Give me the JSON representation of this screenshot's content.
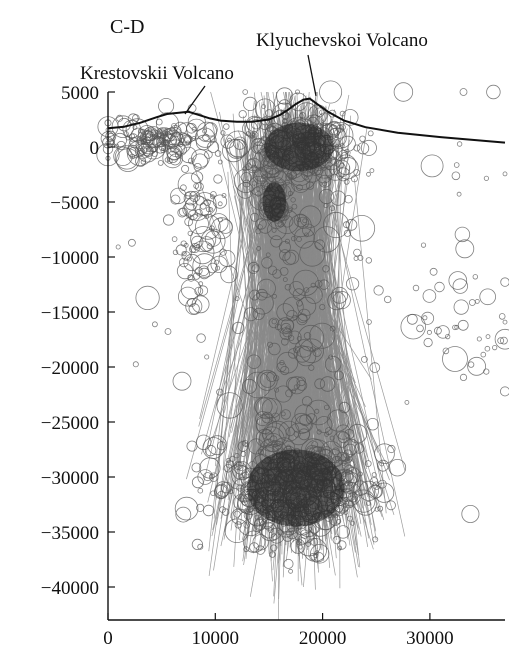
{
  "chart_data": {
    "type": "scatter",
    "title": "C-D",
    "xlabel": "",
    "ylabel": "",
    "xlim": [
      0,
      37000
    ],
    "ylim": [
      -43000,
      5000
    ],
    "x_ticks": [
      0,
      10000,
      20000,
      30000
    ],
    "x_tick_labels": [
      "0",
      "10000",
      "20000",
      "30000"
    ],
    "y_ticks": [
      5000,
      0,
      -5000,
      -10000,
      -15000,
      -20000,
      -25000,
      -30000,
      -35000,
      -40000
    ],
    "y_tick_labels": [
      "5000",
      "0",
      "−5000",
      "−10000",
      "−15000",
      "−20000",
      "−25000",
      "−30000",
      "−35000",
      "−40000"
    ],
    "grid": false,
    "annotations": [
      {
        "text": "Klyuchevskoi Volcano",
        "x": 18800,
        "y": 4400
      },
      {
        "text": "Krestovskii Volcano",
        "x": 7400,
        "y": 3500
      }
    ],
    "topography": {
      "x": [
        0,
        1500,
        3000,
        4500,
        5500,
        6500,
        7500,
        8500,
        9500,
        10500,
        12000,
        13500,
        15000,
        16000,
        16800,
        17500,
        18200,
        18800,
        19500,
        20500,
        22000,
        24000,
        27000,
        31000,
        37000
      ],
      "y": [
        1700,
        1850,
        2200,
        2700,
        3000,
        3100,
        3200,
        2900,
        2600,
        2400,
        2300,
        2300,
        2500,
        2900,
        3400,
        3900,
        4300,
        4400,
        3900,
        3200,
        2400,
        1800,
        1300,
        900,
        400
      ]
    },
    "series": [
      {
        "kind": "hypocenter-circles",
        "clusters": [
          {
            "cx": 4500,
            "cy": 500,
            "sx": 2500,
            "sy": 900,
            "n": 140
          },
          {
            "cx": 8500,
            "cy": -7500,
            "sx": 1200,
            "sy": 4500,
            "n": 90
          },
          {
            "cx": 17800,
            "cy": 0,
            "sx": 2800,
            "sy": 1800,
            "n": 260
          },
          {
            "cx": 15500,
            "cy": -5000,
            "sx": 900,
            "sy": 1500,
            "n": 60
          },
          {
            "cx": 17500,
            "cy": -16000,
            "sx": 2000,
            "sy": 8000,
            "n": 150
          },
          {
            "cx": 17500,
            "cy": -31000,
            "sx": 3800,
            "sy": 2600,
            "n": 520
          },
          {
            "cx": 20000,
            "cy": -10000,
            "sx": 9000,
            "sy": 9000,
            "n": 90
          },
          {
            "cx": 33000,
            "cy": -17000,
            "sx": 2800,
            "sy": 3000,
            "n": 35
          }
        ]
      },
      {
        "kind": "connecting-lines",
        "from": {
          "cx": 17000,
          "cy": 0,
          "sx": 2200,
          "sy": 2500
        },
        "to": {
          "cx": 17500,
          "cy": -31000,
          "sx": 3500,
          "sy": 3500
        },
        "n": 800
      }
    ]
  }
}
